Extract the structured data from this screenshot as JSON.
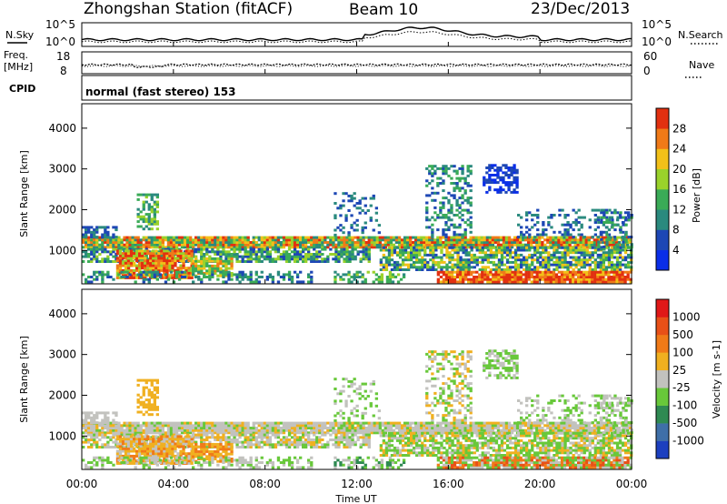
{
  "header": {
    "station": "Zhongshan Station (fitACF)",
    "beam": "Beam 10",
    "date": "23/Dec/2013"
  },
  "small_panels": {
    "nsky_label": "N.Sky",
    "nsearch_label": "N.Search",
    "noise_ticks": [
      "10^5",
      "10^0"
    ],
    "freq_label_1": "Freq.",
    "freq_label_2": "[MHz]",
    "freq_ticks": [
      "18",
      "8"
    ],
    "nave_label": "Nave",
    "nave_ticks": [
      "60",
      "0"
    ],
    "cpid_label": "CPID",
    "cpid_value": "normal (fast stereo) 153"
  },
  "chart_data": [
    {
      "type": "heatmap",
      "name": "power",
      "ylabel": "Slant Range [km]",
      "xlabel": "",
      "ylim": [
        180,
        4600
      ],
      "xlim_hours": [
        0,
        24
      ],
      "y_ticks": [
        "1000",
        "2000",
        "3000",
        "4000"
      ],
      "colorbar": {
        "label": "Power [dB]",
        "ticks": [
          "4",
          "8",
          "12",
          "16",
          "20",
          "24",
          "28"
        ],
        "colors": [
          "#0a2ee8",
          "#1d47b5",
          "#2a8a7e",
          "#3aab57",
          "#9ad22b",
          "#f2c019",
          "#f07a18",
          "#e23010"
        ]
      }
    },
    {
      "type": "heatmap",
      "name": "velocity",
      "ylabel": "Slant Range [km]",
      "xlabel": "Time UT",
      "ylim": [
        180,
        4600
      ],
      "xlim_hours": [
        0,
        24
      ],
      "y_ticks": [
        "1000",
        "2000",
        "3000",
        "4000"
      ],
      "x_ticks": [
        "00:00",
        "04:00",
        "08:00",
        "12:00",
        "16:00",
        "20:00",
        "00:00"
      ],
      "colorbar": {
        "label": "Velocity [m s-1]",
        "ticks": [
          "1000",
          "500",
          "100",
          "25",
          "-25",
          "-100",
          "-500",
          "-1000"
        ],
        "colors": [
          "#1c3fbf",
          "#3f6fa8",
          "#2f8a52",
          "#68c83a",
          "#c2c2be",
          "#f0b020",
          "#f07a18",
          "#e85018",
          "#e01818"
        ]
      }
    }
  ]
}
